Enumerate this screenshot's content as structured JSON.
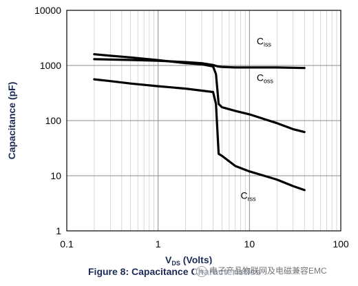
{
  "chart_data": {
    "type": "line",
    "title": "",
    "caption": "Figure 8: Capacitance Characteristics",
    "xlabel": {
      "main": "V",
      "sub": "DS",
      "unit": " (Volts)"
    },
    "ylabel": "Capacitance (pF)",
    "xscale": "log",
    "yscale": "log",
    "xlim": [
      0.1,
      100
    ],
    "ylim": [
      1,
      10000
    ],
    "xticks": [
      "0.1",
      "1",
      "10",
      "100"
    ],
    "yticks": [
      "1",
      "10",
      "100",
      "1000",
      "10000"
    ],
    "grid": true,
    "series": [
      {
        "name": "Ciss",
        "label_main": "C",
        "label_sub": "iss",
        "points": [
          [
            0.2,
            1300
          ],
          [
            0.3,
            1280
          ],
          [
            0.5,
            1260
          ],
          [
            1,
            1220
          ],
          [
            2,
            1150
          ],
          [
            3,
            1100
          ],
          [
            4,
            1020
          ],
          [
            4.5,
            960
          ],
          [
            5,
            940
          ],
          [
            7,
            920
          ],
          [
            10,
            920
          ],
          [
            20,
            920
          ],
          [
            40,
            900
          ]
        ]
      },
      {
        "name": "Coss",
        "label_main": "C",
        "label_sub": "oss",
        "points": [
          [
            0.2,
            1600
          ],
          [
            0.3,
            1500
          ],
          [
            0.5,
            1400
          ],
          [
            1,
            1250
          ],
          [
            2,
            1100
          ],
          [
            3,
            1050
          ],
          [
            4,
            960
          ],
          [
            4.3,
            700
          ],
          [
            4.6,
            200
          ],
          [
            5,
            175
          ],
          [
            7,
            150
          ],
          [
            10,
            130
          ],
          [
            20,
            90
          ],
          [
            30,
            70
          ],
          [
            40,
            62
          ]
        ]
      },
      {
        "name": "Crss",
        "label_main": "C",
        "label_sub": "rss",
        "points": [
          [
            0.2,
            560
          ],
          [
            0.3,
            520
          ],
          [
            0.5,
            470
          ],
          [
            1,
            420
          ],
          [
            2,
            380
          ],
          [
            3,
            350
          ],
          [
            4,
            330
          ],
          [
            4.3,
            200
          ],
          [
            4.6,
            25
          ],
          [
            5,
            23
          ],
          [
            7,
            15
          ],
          [
            10,
            12
          ],
          [
            20,
            8.5
          ],
          [
            30,
            6.5
          ],
          [
            40,
            5.5
          ]
        ]
      }
    ]
  },
  "watermark": {
    "icon": "wechat-icon",
    "text": "电子产品物联网及电磁兼容EMC"
  }
}
